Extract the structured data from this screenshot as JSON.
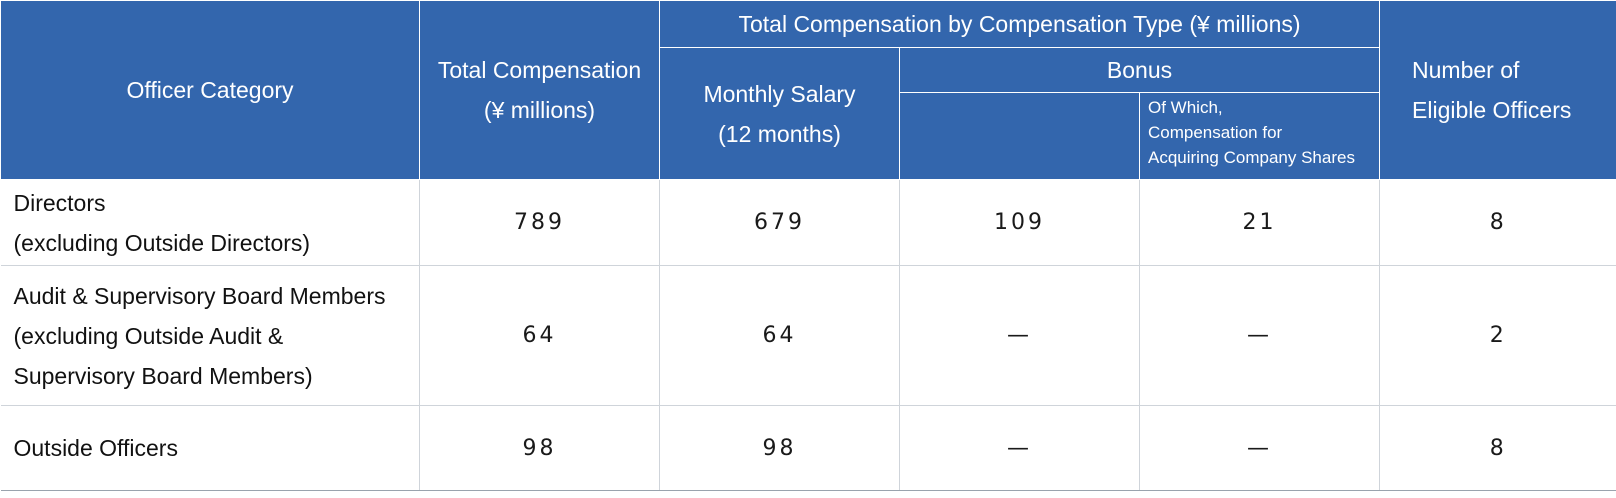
{
  "header": {
    "officer_category": "Officer Category",
    "total_compensation": [
      "Total Compensation",
      "(¥ millions)"
    ],
    "by_type": "Total Compensation by Compensation Type (¥ millions)",
    "monthly_salary": [
      "Monthly Salary",
      "(12 months)"
    ],
    "bonus": "Bonus",
    "of_which": [
      "Of Which,",
      "Compensation for",
      "Acquiring Company Shares"
    ],
    "eligible_officers": [
      "Number of",
      "Eligible Officers"
    ]
  },
  "rows": [
    {
      "category": [
        "Directors",
        "(excluding Outside Directors)"
      ],
      "total": "789",
      "monthly": "679",
      "bonus": "109",
      "shares": "21",
      "officers": "8"
    },
    {
      "category": [
        "Audit & Supervisory Board Members",
        "(excluding Outside Audit &",
        "Supervisory Board Members)"
      ],
      "total": "64",
      "monthly": "64",
      "bonus": "—",
      "shares": "—",
      "officers": "2"
    },
    {
      "category": [
        "Outside Officers"
      ],
      "total": "98",
      "monthly": "98",
      "bonus": "—",
      "shares": "—",
      "officers": "8"
    }
  ],
  "colors": {
    "header_bg": "#3366ad",
    "header_text": "#ffffff",
    "grid": "#cfd4da"
  }
}
